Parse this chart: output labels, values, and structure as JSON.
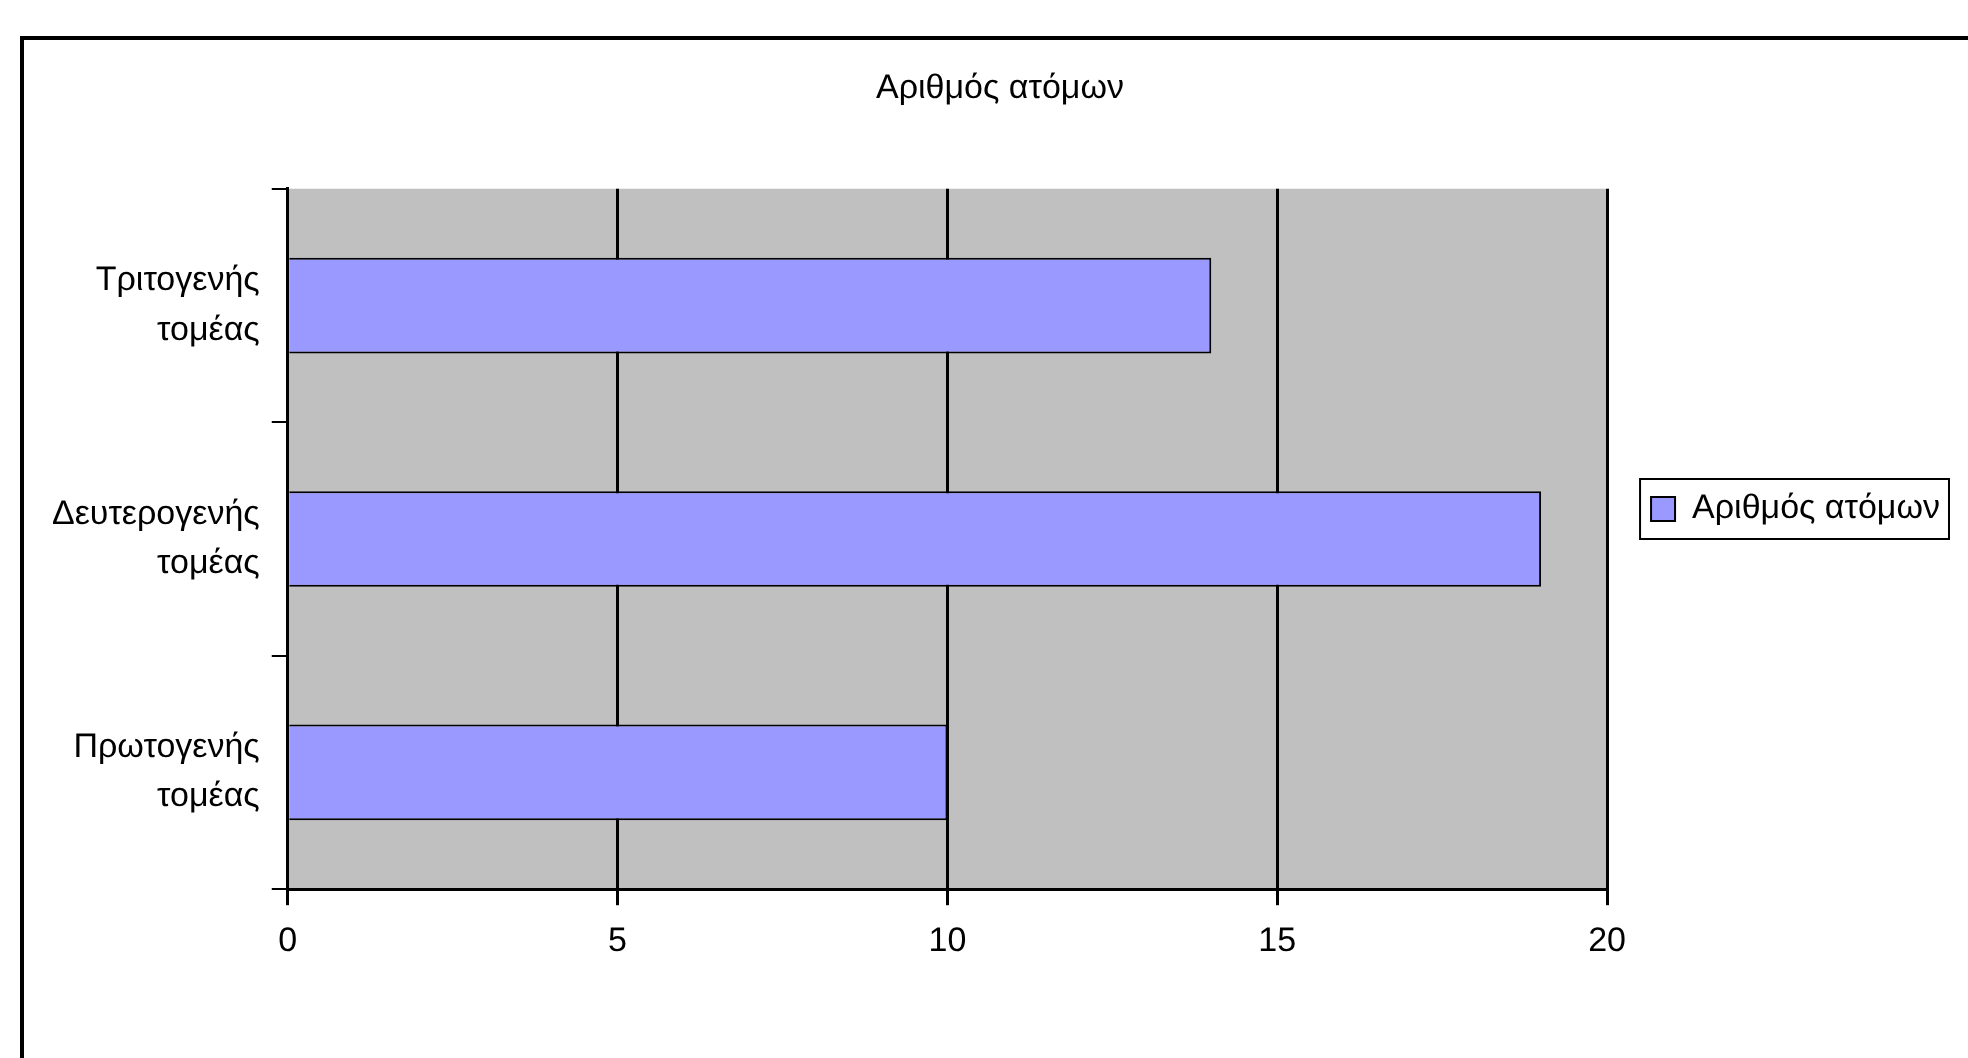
{
  "chart_data": {
    "type": "bar",
    "orientation": "horizontal",
    "title": "Αριθμός ατόμων",
    "categories": [
      "Τριτογενής τομέας",
      "Δευτερογενής τομέας",
      "Πρωτογενής τομέας"
    ],
    "series": [
      {
        "name": "Αριθμός ατόμων",
        "color": "#9999ff",
        "values": [
          14,
          19,
          10
        ]
      }
    ],
    "xlim": [
      0,
      20
    ],
    "xticks": [
      0,
      5,
      10,
      15,
      20
    ],
    "grid": "x",
    "legend": "right"
  }
}
